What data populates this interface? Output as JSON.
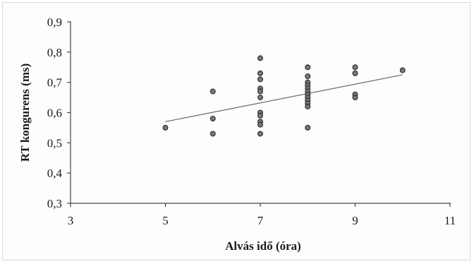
{
  "chart_data": {
    "type": "scatter",
    "xlabel": "Alvás idő (óra)",
    "ylabel": "RT kongurens (ms)",
    "xlim": [
      3,
      11
    ],
    "ylim": [
      0.3,
      0.9
    ],
    "x_ticks": [
      3,
      5,
      7,
      9,
      11
    ],
    "x_tick_labels": [
      "3",
      "5",
      "7",
      "9",
      "11"
    ],
    "y_ticks": [
      0.3,
      0.4,
      0.5,
      0.6,
      0.7,
      0.8,
      0.9
    ],
    "y_tick_labels": [
      "0,3",
      "0,4",
      "0,5",
      "0,6",
      "0,7",
      "0,8",
      "0,9"
    ],
    "grid": false,
    "points": [
      {
        "x": 5,
        "y": 0.55
      },
      {
        "x": 6,
        "y": 0.67
      },
      {
        "x": 6,
        "y": 0.58
      },
      {
        "x": 6,
        "y": 0.53
      },
      {
        "x": 7,
        "y": 0.78
      },
      {
        "x": 7,
        "y": 0.73
      },
      {
        "x": 7,
        "y": 0.71
      },
      {
        "x": 7,
        "y": 0.68
      },
      {
        "x": 7,
        "y": 0.67
      },
      {
        "x": 7,
        "y": 0.65
      },
      {
        "x": 7,
        "y": 0.6
      },
      {
        "x": 7,
        "y": 0.59
      },
      {
        "x": 7,
        "y": 0.57
      },
      {
        "x": 7,
        "y": 0.56
      },
      {
        "x": 7,
        "y": 0.53
      },
      {
        "x": 8,
        "y": 0.75
      },
      {
        "x": 8,
        "y": 0.72
      },
      {
        "x": 8,
        "y": 0.7
      },
      {
        "x": 8,
        "y": 0.69
      },
      {
        "x": 8,
        "y": 0.68
      },
      {
        "x": 8,
        "y": 0.67
      },
      {
        "x": 8,
        "y": 0.66
      },
      {
        "x": 8,
        "y": 0.65
      },
      {
        "x": 8,
        "y": 0.64
      },
      {
        "x": 8,
        "y": 0.63
      },
      {
        "x": 8,
        "y": 0.62
      },
      {
        "x": 8,
        "y": 0.55
      },
      {
        "x": 9,
        "y": 0.75
      },
      {
        "x": 9,
        "y": 0.73
      },
      {
        "x": 9,
        "y": 0.66
      },
      {
        "x": 9,
        "y": 0.65
      },
      {
        "x": 10,
        "y": 0.74
      }
    ],
    "trendline": {
      "type": "linear",
      "x": [
        5,
        10
      ],
      "y": [
        0.57,
        0.725
      ]
    },
    "colors": {
      "points": "#7a7a7a",
      "point_outline": "#2e2e2e",
      "trendline": "#6a6a6a"
    }
  }
}
